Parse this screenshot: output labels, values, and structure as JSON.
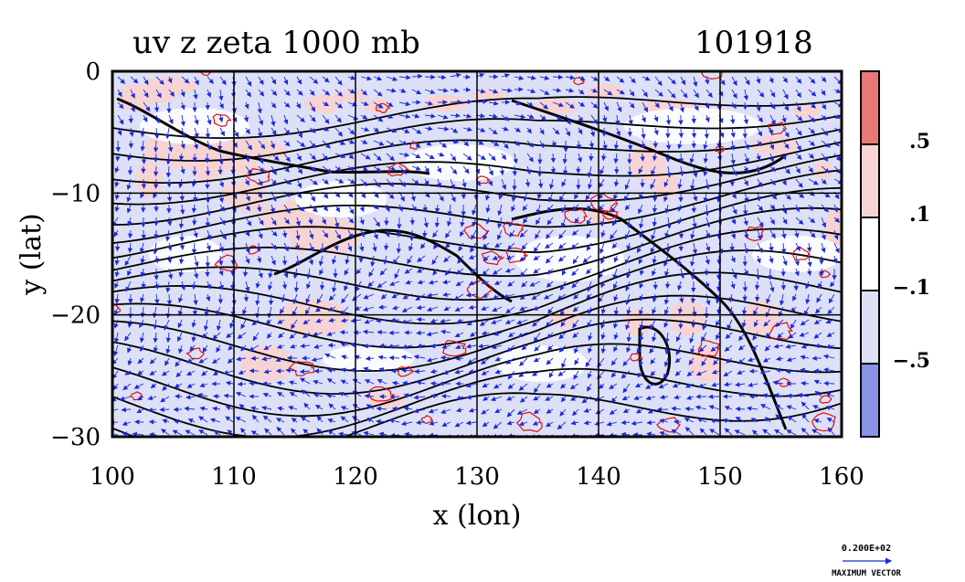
{
  "chart_data": {
    "type": "contour",
    "title": "uv z zeta 1000 mb",
    "time_label": "101918",
    "xlabel": "x (lon)",
    "ylabel": "y (lat)",
    "xlim": [
      100,
      160
    ],
    "ylim": [
      -30,
      0
    ],
    "x_ticks": [
      100,
      110,
      120,
      130,
      140,
      150,
      160
    ],
    "y_ticks": [
      0,
      -10,
      -20,
      -30
    ],
    "x_tick_labels": [
      "100",
      "110",
      "120",
      "130",
      "140",
      "150",
      "160"
    ],
    "y_tick_labels": [
      "0",
      "−10",
      "−20",
      "−30"
    ],
    "grid": true,
    "fields": [
      "uv wind vectors",
      "z contours",
      "zeta shading"
    ],
    "colorbar": {
      "labels": [
        ".5",
        ".1",
        "−.1",
        "−.5"
      ],
      "levels": [
        -0.5,
        -0.1,
        0.1,
        0.5
      ],
      "colors": [
        "#8a92e6",
        "#dde0f6",
        "#ffffff",
        "#f7d4d4",
        "#e87878"
      ]
    },
    "vector_legend": {
      "value": "0.200E+02",
      "label": "MAXIMUM VECTOR"
    },
    "colors": {
      "vector": "#1c2bd6",
      "contour": "#000000",
      "pos_contour": "#e01010",
      "neg_fill": "#dde0f6",
      "pos_fill": "#f7d4d4"
    }
  }
}
